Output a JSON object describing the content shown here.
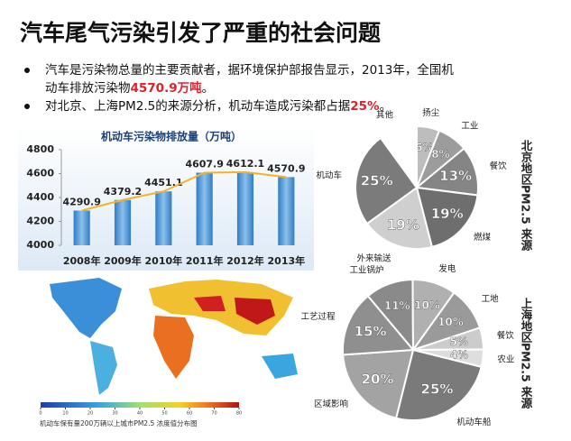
{
  "title": "汽车尾气污染引发了严重的社会问题",
  "bullets": [
    {
      "lines": [
        [
          {
            "text": "汽车是污染物总量的主要贡献者，据环境保护部报告显示，2013年，全国机"
          }
        ],
        [
          {
            "text": "动车排放污染物"
          },
          {
            "text": "4570.9万吨",
            "highlight": true
          },
          {
            "text": "。"
          }
        ]
      ]
    },
    {
      "lines": [
        [
          {
            "text": "对北京、上海PM2.5的来源分析，机动车造成污染都占据"
          },
          {
            "text": "25%",
            "highlight": true
          },
          {
            "text": "。"
          }
        ]
      ]
    }
  ],
  "highlight_color": "#e0202a",
  "chart_data": [
    {
      "type": "bar",
      "title": "机动车污染物排放量（万吨）",
      "categories": [
        "2008年",
        "2009年",
        "2010年",
        "2011年",
        "2012年",
        "2013年"
      ],
      "values": [
        4290.9,
        4379.2,
        4451.1,
        4607.9,
        4612.1,
        4570.9
      ],
      "color": "#4a90d0",
      "line": true,
      "line_color": "#f5b324",
      "ylim": [
        4000,
        4800
      ],
      "yticks": [
        4000,
        4200,
        4400,
        4600,
        4800
      ]
    },
    {
      "type": "pie",
      "title": "北京地区PM2.5 来源",
      "categories": [
        "扬尘",
        "工业",
        "餐饮",
        "燃煤",
        "外来输送",
        "机动车",
        "其他"
      ],
      "values": [
        6,
        8,
        13,
        19,
        19,
        25,
        10
      ],
      "value_labels": [
        "6%",
        "8%",
        "13%",
        "19%",
        "19%",
        "25%",
        null
      ],
      "colors": [
        "#bdbdbd",
        "#9c9c9c",
        "#858585",
        "#6e6e6e",
        "#cfcfcf",
        "#7b7b7b",
        "#ffffff"
      ]
    },
    {
      "type": "pie",
      "title": "上海地区PM2.5 来源",
      "categories": [
        "工业锅炉",
        "发电",
        "工地",
        "餐饮",
        "农业",
        "机动车船",
        "区域影响",
        "工艺过程"
      ],
      "values": [
        11,
        10,
        10,
        5,
        4,
        25,
        20,
        15
      ],
      "value_labels": [
        "11%",
        "10%",
        "10%",
        "5%",
        "4%",
        "25%",
        "20%",
        "15%"
      ],
      "colors": [
        "#8a8a8a",
        "#b0b0b0",
        "#9a9a9a",
        "#cccccc",
        "#dedede",
        "#7a7a7a",
        "#a3a3a3",
        "#8f8f8f"
      ]
    }
  ],
  "map": {
    "caption": "机动车保有量200万辆以上城市PM2.5 浓度值分布图",
    "colorbar_ticks": [
      0,
      10,
      20,
      30,
      40,
      50,
      60,
      70,
      80
    ]
  }
}
